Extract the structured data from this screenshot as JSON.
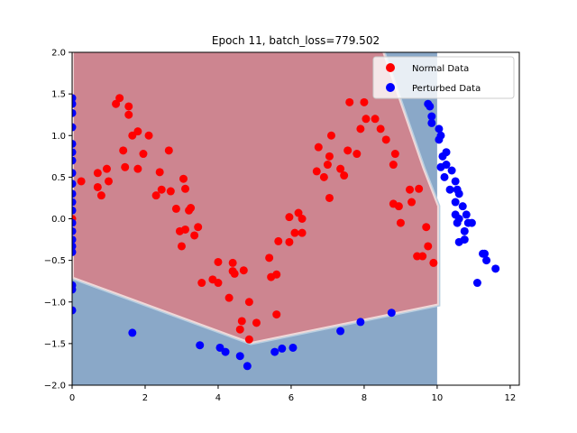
{
  "chart_data": {
    "type": "scatter",
    "title": "Epoch 11, batch_loss=779.502",
    "xlabel": "",
    "ylabel": "",
    "xlim": [
      0,
      12.25
    ],
    "ylim": [
      -2.0,
      2.0
    ],
    "xticks": [
      0,
      2,
      4,
      6,
      8,
      10,
      12
    ],
    "yticks": [
      -2.0,
      -1.5,
      -1.0,
      -0.5,
      0.0,
      0.5,
      1.0,
      1.5,
      2.0
    ],
    "xtick_labels": [
      "0",
      "2",
      "4",
      "6",
      "8",
      "10",
      "12"
    ],
    "ytick_labels": [
      "−2.0",
      "−1.5",
      "−1.0",
      "−0.5",
      "0.0",
      "0.5",
      "1.0",
      "1.5",
      "2.0"
    ],
    "grid": false,
    "legend_position": "top-right",
    "colors": {
      "normal": "#ff0000",
      "perturbed": "#0000ff",
      "region_normal": "#cd8590",
      "region_perturbed": "#8aa8c8",
      "boundary_light": "#f0d8d8",
      "boundary_blue": "#b8cfe0"
    },
    "decision_region": {
      "normal_polygon": [
        [
          0.05,
          2.0
        ],
        [
          0.05,
          1.4
        ],
        [
          0.05,
          -0.7
        ],
        [
          4.9,
          -1.48
        ],
        [
          10.0,
          -1.02
        ],
        [
          10.0,
          0.15
        ],
        [
          9.6,
          0.6
        ],
        [
          8.5,
          2.0
        ]
      ]
    },
    "series": [
      {
        "name": "Normal Data",
        "color": "#ff0000",
        "points": [
          [
            0.0,
            0.0
          ],
          [
            0.25,
            0.45
          ],
          [
            0.7,
            0.55
          ],
          [
            0.7,
            0.38
          ],
          [
            0.8,
            0.28
          ],
          [
            0.95,
            0.6
          ],
          [
            1.0,
            0.45
          ],
          [
            1.2,
            1.38
          ],
          [
            1.3,
            1.45
          ],
          [
            1.4,
            0.82
          ],
          [
            1.45,
            0.62
          ],
          [
            1.55,
            1.35
          ],
          [
            1.55,
            1.25
          ],
          [
            1.65,
            1.0
          ],
          [
            1.8,
            1.05
          ],
          [
            1.8,
            0.6
          ],
          [
            1.95,
            0.78
          ],
          [
            2.1,
            1.0
          ],
          [
            2.3,
            0.28
          ],
          [
            2.4,
            0.56
          ],
          [
            2.45,
            0.35
          ],
          [
            2.65,
            0.82
          ],
          [
            2.7,
            0.33
          ],
          [
            2.85,
            0.12
          ],
          [
            2.95,
            -0.15
          ],
          [
            3.0,
            -0.33
          ],
          [
            3.05,
            0.48
          ],
          [
            3.1,
            0.36
          ],
          [
            3.1,
            -0.13
          ],
          [
            3.2,
            0.1
          ],
          [
            3.25,
            0.13
          ],
          [
            3.35,
            -0.2
          ],
          [
            3.45,
            -0.1
          ],
          [
            3.55,
            -0.77
          ],
          [
            3.85,
            -0.73
          ],
          [
            4.0,
            -0.52
          ],
          [
            4.0,
            -0.77
          ],
          [
            4.3,
            -0.95
          ],
          [
            4.4,
            -0.53
          ],
          [
            4.4,
            -0.63
          ],
          [
            4.45,
            -0.66
          ],
          [
            4.6,
            -1.33
          ],
          [
            4.65,
            -1.23
          ],
          [
            4.7,
            -0.62
          ],
          [
            4.85,
            -1.0
          ],
          [
            4.85,
            -1.45
          ],
          [
            5.05,
            -1.25
          ],
          [
            5.4,
            -0.47
          ],
          [
            5.45,
            -0.7
          ],
          [
            5.6,
            -1.15
          ],
          [
            5.6,
            -0.67
          ],
          [
            5.65,
            -0.27
          ],
          [
            5.95,
            0.02
          ],
          [
            5.95,
            -0.28
          ],
          [
            6.1,
            -0.17
          ],
          [
            6.2,
            0.07
          ],
          [
            6.3,
            0.0
          ],
          [
            6.3,
            -0.17
          ],
          [
            6.7,
            0.57
          ],
          [
            6.75,
            0.86
          ],
          [
            6.9,
            0.5
          ],
          [
            7.0,
            0.65
          ],
          [
            7.05,
            0.25
          ],
          [
            7.05,
            0.75
          ],
          [
            7.1,
            1.0
          ],
          [
            7.35,
            0.6
          ],
          [
            7.45,
            0.52
          ],
          [
            7.55,
            0.82
          ],
          [
            7.6,
            1.4
          ],
          [
            7.8,
            0.78
          ],
          [
            7.9,
            1.08
          ],
          [
            8.0,
            1.4
          ],
          [
            8.05,
            1.2
          ],
          [
            8.3,
            1.2
          ],
          [
            8.45,
            1.08
          ],
          [
            8.6,
            0.95
          ],
          [
            8.8,
            0.65
          ],
          [
            8.8,
            0.18
          ],
          [
            8.85,
            0.78
          ],
          [
            8.95,
            0.15
          ],
          [
            9.0,
            -0.05
          ],
          [
            9.25,
            0.35
          ],
          [
            9.3,
            0.2
          ],
          [
            9.45,
            -0.45
          ],
          [
            9.5,
            0.36
          ],
          [
            9.6,
            -0.45
          ],
          [
            9.7,
            -0.1
          ],
          [
            9.75,
            -0.33
          ],
          [
            9.9,
            -0.53
          ]
        ]
      },
      {
        "name": "Perturbed Data",
        "color": "#0000ff",
        "points": [
          [
            0.0,
            1.45
          ],
          [
            0.0,
            1.38
          ],
          [
            0.0,
            1.27
          ],
          [
            0.0,
            1.1
          ],
          [
            0.0,
            0.9
          ],
          [
            0.0,
            0.8
          ],
          [
            0.0,
            0.7
          ],
          [
            0.0,
            0.55
          ],
          [
            0.0,
            0.42
          ],
          [
            0.0,
            0.3
          ],
          [
            0.0,
            0.2
          ],
          [
            0.0,
            0.1
          ],
          [
            0.0,
            -0.05
          ],
          [
            0.0,
            -0.15
          ],
          [
            0.0,
            -0.25
          ],
          [
            0.0,
            -0.33
          ],
          [
            0.0,
            -0.4
          ],
          [
            0.0,
            -0.8
          ],
          [
            0.0,
            -0.85
          ],
          [
            0.0,
            -1.1
          ],
          [
            1.65,
            -1.37
          ],
          [
            3.5,
            -1.52
          ],
          [
            4.05,
            -1.55
          ],
          [
            4.2,
            -1.6
          ],
          [
            4.6,
            -1.65
          ],
          [
            4.8,
            -1.77
          ],
          [
            5.55,
            -1.6
          ],
          [
            5.75,
            -1.56
          ],
          [
            6.05,
            -1.55
          ],
          [
            7.35,
            -1.35
          ],
          [
            7.9,
            -1.24
          ],
          [
            8.75,
            -1.13
          ],
          [
            9.75,
            1.38
          ],
          [
            9.8,
            1.35
          ],
          [
            9.85,
            1.23
          ],
          [
            9.85,
            1.15
          ],
          [
            10.05,
            1.08
          ],
          [
            10.05,
            0.95
          ],
          [
            10.1,
            1.0
          ],
          [
            10.15,
            0.75
          ],
          [
            10.25,
            0.8
          ],
          [
            10.25,
            0.65
          ],
          [
            10.1,
            0.62
          ],
          [
            10.2,
            0.5
          ],
          [
            10.35,
            0.35
          ],
          [
            10.4,
            0.58
          ],
          [
            10.5,
            0.45
          ],
          [
            10.55,
            0.35
          ],
          [
            10.5,
            0.2
          ],
          [
            10.6,
            0.3
          ],
          [
            10.7,
            0.15
          ],
          [
            10.8,
            0.05
          ],
          [
            10.5,
            0.05
          ],
          [
            10.6,
            0.0
          ],
          [
            10.55,
            -0.05
          ],
          [
            10.75,
            -0.15
          ],
          [
            10.85,
            -0.05
          ],
          [
            10.95,
            -0.05
          ],
          [
            10.6,
            -0.28
          ],
          [
            10.75,
            -0.25
          ],
          [
            11.1,
            -0.77
          ],
          [
            11.25,
            -0.42
          ],
          [
            11.35,
            -0.5
          ],
          [
            11.3,
            -0.42
          ],
          [
            11.6,
            -0.6
          ]
        ]
      }
    ]
  }
}
